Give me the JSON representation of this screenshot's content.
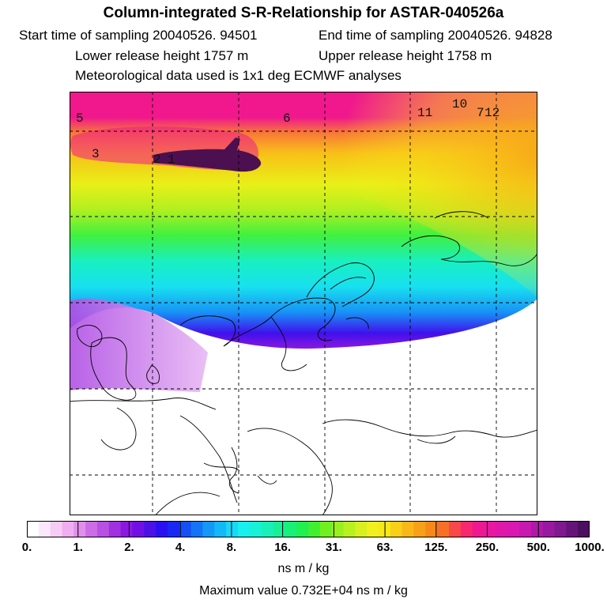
{
  "header": {
    "title": "Column-integrated S-R-Relationship for ASTAR-040526a",
    "start_time": "Start time of sampling 20040526. 94501",
    "end_time": "End time of sampling 20040526. 94828",
    "lower_height": "Lower release height 1757 m",
    "upper_height": "Upper release height 1758 m",
    "met_data": "Meteorological data used is 1x1 deg ECMWF analyses"
  },
  "map": {
    "labels": [
      "5",
      "6",
      "11",
      "10",
      "7",
      "12",
      "3",
      "2",
      "1"
    ]
  },
  "colorbar": {
    "ticks": [
      "0.",
      "1.",
      "2.",
      "4.",
      "8.",
      "16.",
      "31.",
      "63.",
      "125.",
      "250.",
      "500.",
      "1000."
    ],
    "colors": [
      "#ffffff",
      "#fce8fc",
      "#f6ccf6",
      "#eeaef0",
      "#e090ec",
      "#cc6ce6",
      "#b850e4",
      "#a030e0",
      "#8a18e0",
      "#7010e4",
      "#4c10e8",
      "#2a10f0",
      "#1828f4",
      "#1450f4",
      "#1474f6",
      "#1498f8",
      "#14b8f8",
      "#18d8f8",
      "#18f0f0",
      "#18f0d8",
      "#18f0b8",
      "#18f098",
      "#18f078",
      "#20f050",
      "#40f030",
      "#70f020",
      "#98f020",
      "#b8f020",
      "#d8f020",
      "#f0f020",
      "#f8e818",
      "#f8d018",
      "#f8b818",
      "#f8a018",
      "#f88818",
      "#f87028",
      "#f84848",
      "#f82870",
      "#f01890",
      "#e818a0",
      "#e018a8",
      "#d818b0",
      "#c818b0",
      "#b018a8",
      "#9818a0",
      "#801890",
      "#661478",
      "#4c1060"
    ],
    "units": "ns m / kg",
    "max_value": "Maximum value  0.732E+04 ns m / kg"
  },
  "colors": {
    "high": "#f0188c",
    "plume": "#4c1050"
  }
}
